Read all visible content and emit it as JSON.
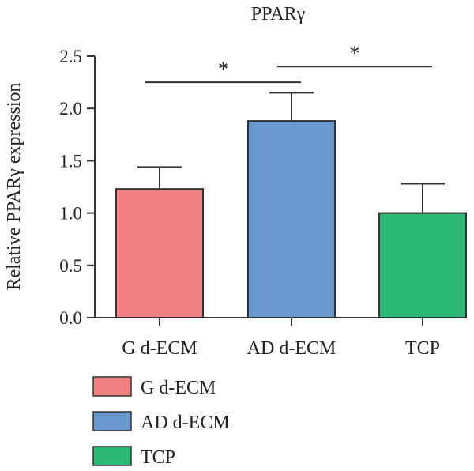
{
  "chart_data": {
    "type": "bar",
    "title": "PPARγ",
    "ylabel": "Relative PPARγ expression",
    "xlabel": "",
    "categories": [
      "G d-ECM",
      "AD d-ECM",
      "TCP"
    ],
    "values": [
      1.23,
      1.88,
      1.0
    ],
    "errors": [
      0.21,
      0.27,
      0.28
    ],
    "ylim": [
      0,
      2.5
    ],
    "yticks": [
      "0.0",
      "0.5",
      "1.0",
      "1.5",
      "2.0",
      "2.5"
    ],
    "yticks_values": [
      0,
      0.5,
      1.0,
      1.5,
      2.0,
      2.5
    ],
    "colors": [
      "#f28080",
      "#6a99d0",
      "#2eb878"
    ],
    "significance": [
      {
        "from": 0,
        "to": 1,
        "label": "*",
        "y": 2.25
      },
      {
        "from": 1,
        "to": 2,
        "label": "*",
        "y": 2.4
      }
    ],
    "legend": {
      "position": "bottom-left",
      "entries": [
        "G d-ECM",
        "AD d-ECM",
        "TCP"
      ]
    },
    "grid": false
  }
}
